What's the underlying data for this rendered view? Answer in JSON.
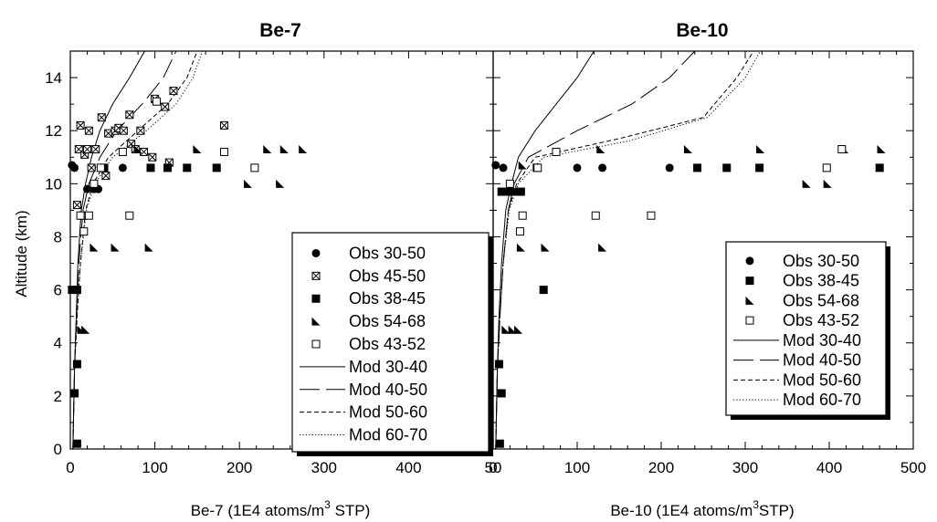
{
  "chart_data": [
    {
      "type": "scatter",
      "title": "Be-7",
      "xlabel": "Be-7 (1E4 atoms/m",
      "xlabel_sup": "3",
      "xlabel_tail": " STP)",
      "ylabel": "Altitude (km)",
      "xlim": [
        0,
        500
      ],
      "ylim": [
        0,
        15
      ],
      "xticks": [
        "0",
        "100",
        "200",
        "300",
        "400",
        "50"
      ],
      "yticks": [
        "0",
        "2",
        "4",
        "6",
        "8",
        "10",
        "12",
        "14"
      ],
      "legend_position": "lower-right",
      "series": [
        {
          "name": "Obs 30-50",
          "marker": "circle",
          "points": [
            [
              2,
              10.7
            ],
            [
              5,
              10.6
            ],
            [
              20,
              9.8
            ],
            [
              28,
              9.8
            ],
            [
              33,
              9.8
            ],
            [
              62,
              10.6
            ]
          ]
        },
        {
          "name": "Obs 45-50",
          "marker": "xsquare",
          "points": [
            [
              8,
              9.2
            ],
            [
              10,
              11.3
            ],
            [
              12,
              12.2
            ],
            [
              15,
              8.8
            ],
            [
              17,
              11.1
            ],
            [
              20,
              11.3
            ],
            [
              22,
              12.0
            ],
            [
              25,
              10.6
            ],
            [
              30,
              11.3
            ],
            [
              37,
              12.5
            ],
            [
              42,
              10.3
            ],
            [
              45,
              11.9
            ],
            [
              53,
              12.0
            ],
            [
              57,
              12.1
            ],
            [
              63,
              12.0
            ],
            [
              70,
              12.6
            ],
            [
              72,
              11.5
            ],
            [
              77,
              11.3
            ],
            [
              83,
              12.0
            ],
            [
              87,
              11.2
            ],
            [
              97,
              11.0
            ],
            [
              100,
              13.2
            ],
            [
              112,
              12.9
            ],
            [
              117,
              10.8
            ],
            [
              122,
              13.5
            ],
            [
              182,
              12.2
            ]
          ]
        },
        {
          "name": "Obs 38-45",
          "marker": "square",
          "points": [
            [
              8,
              0.2
            ],
            [
              5,
              2.1
            ],
            [
              8,
              3.2
            ],
            [
              2,
              6.0
            ],
            [
              8,
              6.0
            ],
            [
              40,
              10.6
            ],
            [
              95,
              10.6
            ],
            [
              115,
              10.6
            ],
            [
              138,
              10.6
            ],
            [
              173,
              10.6
            ]
          ]
        },
        {
          "name": "Obs 54-68",
          "marker": "triangle",
          "points": [
            [
              13,
              4.5
            ],
            [
              18,
              4.5
            ],
            [
              28,
              7.6
            ],
            [
              53,
              7.6
            ],
            [
              93,
              7.6
            ],
            [
              80,
              11.3
            ],
            [
              150,
              11.3
            ],
            [
              210,
              10.0
            ],
            [
              233,
              11.3
            ],
            [
              248,
              10.0
            ],
            [
              253,
              11.3
            ],
            [
              275,
              11.3
            ]
          ]
        },
        {
          "name": "Obs 43-52",
          "marker": "opensquare",
          "points": [
            [
              12,
              8.8
            ],
            [
              16,
              8.2
            ],
            [
              22,
              8.8
            ],
            [
              28,
              10.0
            ],
            [
              36,
              10.6
            ],
            [
              62,
              11.2
            ],
            [
              70,
              8.8
            ],
            [
              102,
              13.1
            ],
            [
              182,
              11.2
            ],
            [
              218,
              10.6
            ]
          ]
        }
      ],
      "models": [
        {
          "name": "Mod 30-40",
          "style": "solid",
          "points": [
            [
              3,
              0
            ],
            [
              5,
              3
            ],
            [
              7,
              5
            ],
            [
              9,
              7
            ],
            [
              13,
              9
            ],
            [
              18,
              10
            ],
            [
              25,
              11
            ],
            [
              35,
              12
            ],
            [
              50,
              13
            ],
            [
              70,
              14
            ],
            [
              88,
              15
            ]
          ]
        },
        {
          "name": "Mod 40-50",
          "style": "longdash",
          "points": [
            [
              3,
              0
            ],
            [
              5,
              3
            ],
            [
              7,
              5
            ],
            [
              10,
              7
            ],
            [
              15,
              9
            ],
            [
              22,
              10
            ],
            [
              35,
              11
            ],
            [
              55,
              12
            ],
            [
              85,
              13
            ],
            [
              110,
              14
            ],
            [
              125,
              15
            ]
          ]
        },
        {
          "name": "Mod 50-60",
          "style": "shortdash",
          "points": [
            [
              3,
              0
            ],
            [
              5,
              3
            ],
            [
              8,
              5
            ],
            [
              12,
              7
            ],
            [
              18,
              9
            ],
            [
              27,
              10
            ],
            [
              45,
              11
            ],
            [
              80,
              12
            ],
            [
              115,
              13
            ],
            [
              138,
              14
            ],
            [
              150,
              15
            ]
          ]
        },
        {
          "name": "Mod 60-70",
          "style": "dotted",
          "points": [
            [
              3,
              0
            ],
            [
              5,
              3
            ],
            [
              8,
              5
            ],
            [
              12,
              7
            ],
            [
              19,
              9
            ],
            [
              29,
              10
            ],
            [
              50,
              11
            ],
            [
              90,
              12
            ],
            [
              125,
              13
            ],
            [
              145,
              14
            ],
            [
              156,
              15
            ]
          ]
        }
      ]
    },
    {
      "type": "scatter",
      "title": "Be-10",
      "xlabel": "Be-10 (1E4 atoms/m",
      "xlabel_sup": "3",
      "xlabel_tail": "STP)",
      "ylabel": "",
      "xlim": [
        0,
        500
      ],
      "ylim": [
        0,
        15
      ],
      "xticks": [
        "0",
        "100",
        "200",
        "300",
        "400",
        "500"
      ],
      "legend_position": "lower-right",
      "series": [
        {
          "name": "Obs 30-50",
          "marker": "circle",
          "points": [
            [
              3,
              10.7
            ],
            [
              12,
              10.6
            ],
            [
              18,
              9.7
            ],
            [
              28,
              9.7
            ],
            [
              100,
              10.6
            ],
            [
              130,
              10.6
            ],
            [
              210,
              10.6
            ]
          ]
        },
        {
          "name": "Obs 38-45",
          "marker": "square",
          "points": [
            [
              8,
              0.2
            ],
            [
              10,
              2.1
            ],
            [
              7,
              3.2
            ],
            [
              10,
              9.7
            ],
            [
              20,
              9.7
            ],
            [
              33,
              9.7
            ],
            [
              60,
              6.0
            ],
            [
              52,
              10.6
            ],
            [
              243,
              10.6
            ],
            [
              278,
              10.6
            ],
            [
              317,
              10.6
            ],
            [
              460,
              10.6
            ]
          ]
        },
        {
          "name": "Obs 54-68",
          "marker": "triangle",
          "points": [
            [
              15,
              4.5
            ],
            [
              23,
              4.5
            ],
            [
              30,
              4.5
            ],
            [
              33,
              7.6
            ],
            [
              62,
              7.6
            ],
            [
              130,
              7.6
            ],
            [
              35,
              10.7
            ],
            [
              128,
              11.3
            ],
            [
              232,
              11.3
            ],
            [
              318,
              11.3
            ],
            [
              373,
              10.0
            ],
            [
              398,
              10.0
            ],
            [
              418,
              11.3
            ],
            [
              462,
              11.3
            ]
          ]
        },
        {
          "name": "Obs 43-52",
          "marker": "opensquare",
          "points": [
            [
              20,
              10.0
            ],
            [
              32,
              8.2
            ],
            [
              35,
              8.8
            ],
            [
              53,
              10.6
            ],
            [
              75,
              11.2
            ],
            [
              122,
              8.8
            ],
            [
              188,
              8.8
            ],
            [
              397,
              10.6
            ],
            [
              415,
              11.3
            ]
          ]
        }
      ],
      "models": [
        {
          "name": "Mod 30-40",
          "style": "solid",
          "points": [
            [
              3,
              0
            ],
            [
              5,
              3
            ],
            [
              7,
              5
            ],
            [
              10,
              7
            ],
            [
              15,
              9
            ],
            [
              22,
              10
            ],
            [
              30,
              11
            ],
            [
              50,
              12
            ],
            [
              75,
              13
            ],
            [
              100,
              14
            ],
            [
              120,
              15
            ]
          ]
        },
        {
          "name": "Mod 40-50",
          "style": "longdash",
          "points": [
            [
              3,
              0
            ],
            [
              5,
              3
            ],
            [
              8,
              5
            ],
            [
              12,
              7
            ],
            [
              18,
              9
            ],
            [
              25,
              10
            ],
            [
              42,
              11
            ],
            [
              100,
              12
            ],
            [
              165,
              13
            ],
            [
              210,
              14
            ],
            [
              240,
              15
            ]
          ]
        },
        {
          "name": "Mod 50-60",
          "style": "shortdash",
          "points": [
            [
              3,
              0
            ],
            [
              5,
              3
            ],
            [
              8,
              5
            ],
            [
              12,
              7
            ],
            [
              18,
              9
            ],
            [
              28,
              10
            ],
            [
              50,
              11
            ],
            [
              150,
              11.7
            ],
            [
              250,
              12.5
            ],
            [
              290,
              14
            ],
            [
              310,
              15
            ]
          ]
        },
        {
          "name": "Mod 60-70",
          "style": "dotted",
          "points": [
            [
              3,
              0
            ],
            [
              5,
              3
            ],
            [
              8,
              5
            ],
            [
              12,
              7
            ],
            [
              19,
              9
            ],
            [
              30,
              10
            ],
            [
              60,
              11
            ],
            [
              160,
              11.6
            ],
            [
              255,
              12.5
            ],
            [
              300,
              14
            ],
            [
              318,
              15
            ]
          ]
        }
      ]
    }
  ]
}
